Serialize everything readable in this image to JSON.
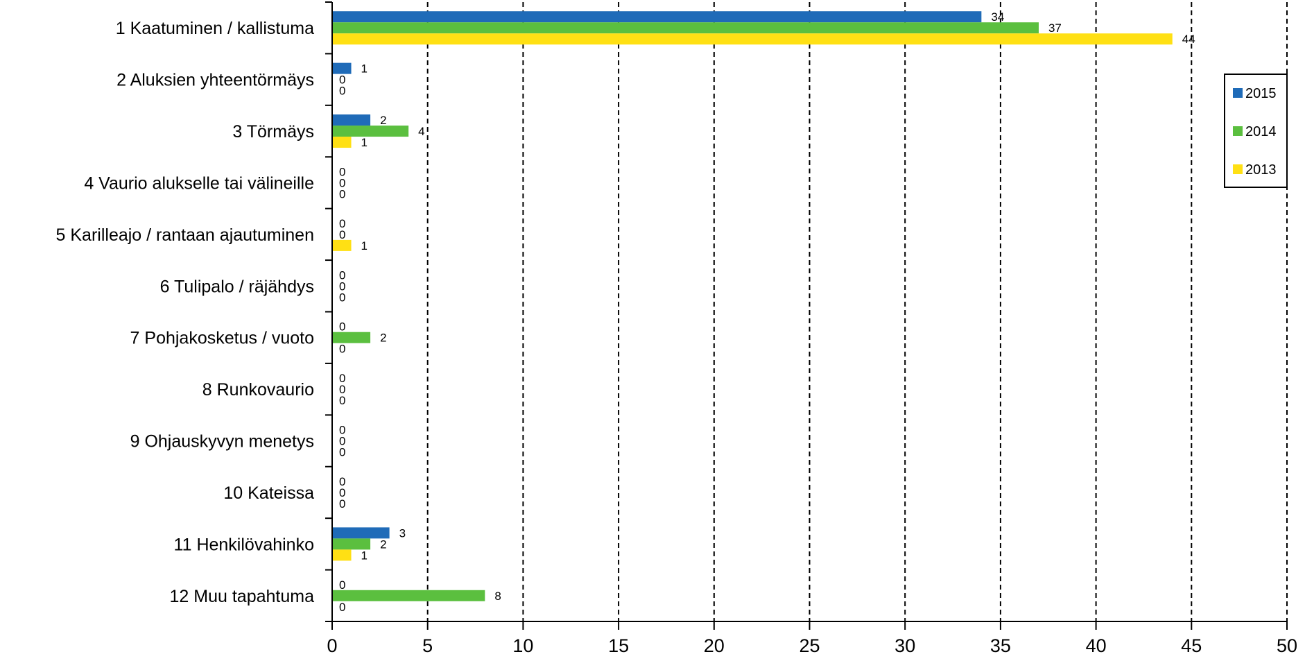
{
  "chart_data": {
    "type": "bar",
    "orientation": "horizontal",
    "categories": [
      "1 Kaatuminen / kallistuma",
      "2 Aluksien yhteentörmäys",
      "3 Törmäys",
      "4 Vaurio alukselle tai välineille",
      "5 Karilleajo / rantaan ajautuminen",
      "6 Tulipalo / räjähdys",
      "7 Pohjakosketus / vuoto",
      "8 Runkovaurio",
      "9 Ohjauskyvyn menetys",
      "10 Kateissa",
      "11 Henkilövahinko",
      "12 Muu tapahtuma"
    ],
    "series": [
      {
        "name": "2015",
        "color": "#1f6bb8",
        "values": [
          34,
          1,
          2,
          0,
          0,
          0,
          0,
          0,
          0,
          0,
          3,
          0
        ]
      },
      {
        "name": "2014",
        "color": "#5bbf3f",
        "values": [
          37,
          0,
          4,
          0,
          0,
          0,
          2,
          0,
          0,
          0,
          2,
          8
        ]
      },
      {
        "name": "2013",
        "color": "#ffe014",
        "values": [
          44,
          0,
          1,
          0,
          1,
          0,
          0,
          0,
          0,
          0,
          1,
          0
        ]
      }
    ],
    "xlim": [
      0,
      50
    ],
    "xticks": [
      "0",
      "5",
      "10",
      "15",
      "20",
      "25",
      "30",
      "35",
      "40",
      "45",
      "50"
    ],
    "grid": "vertical dashed",
    "legend_position": "right"
  }
}
